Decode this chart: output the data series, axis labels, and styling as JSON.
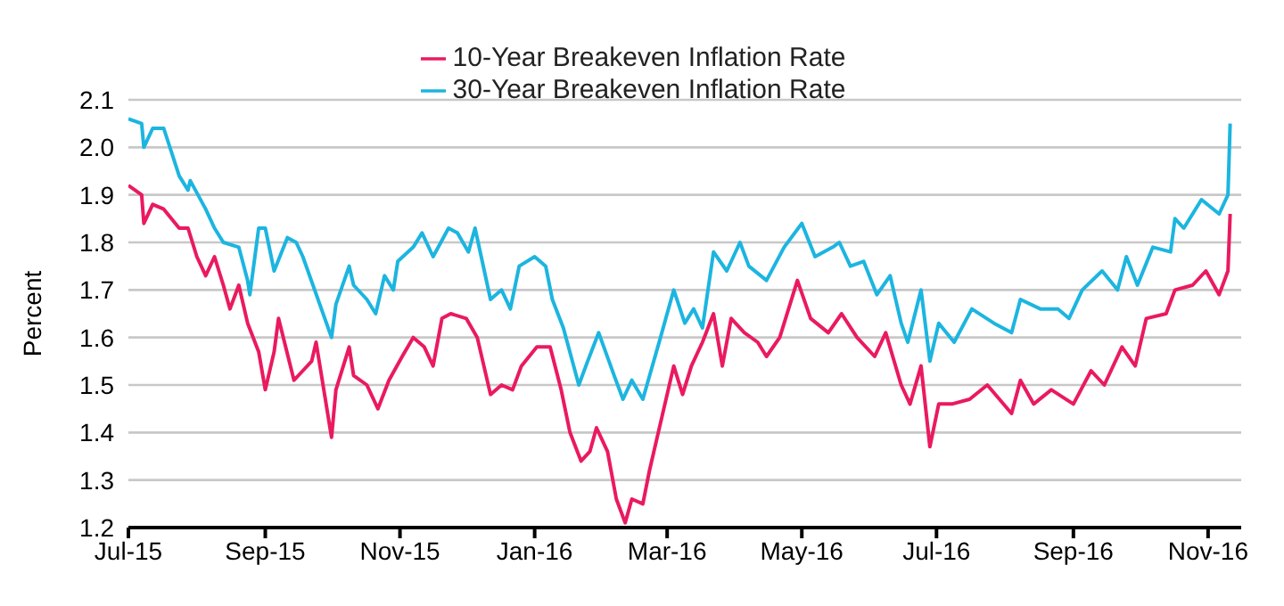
{
  "chart_data": {
    "type": "line",
    "ylabel": "Percent",
    "xlim": [
      "2015-07-01",
      "2016-11-16"
    ],
    "xticks": [
      {
        "value": "2015-07-01",
        "label": "Jul-15"
      },
      {
        "value": "2015-09-01",
        "label": "Sep-15"
      },
      {
        "value": "2015-11-01",
        "label": "Nov-15"
      },
      {
        "value": "2016-01-01",
        "label": "Jan-16"
      },
      {
        "value": "2016-03-01",
        "label": "Mar-16"
      },
      {
        "value": "2016-05-01",
        "label": "May-16"
      },
      {
        "value": "2016-07-01",
        "label": "Jul-16"
      },
      {
        "value": "2016-09-01",
        "label": "Sep-16"
      },
      {
        "value": "2016-11-01",
        "label": "Nov-16"
      }
    ],
    "ylim": [
      1.2,
      2.1
    ],
    "yticks": [
      1.2,
      1.3,
      1.4,
      1.5,
      1.6,
      1.7,
      1.8,
      1.9,
      {
        "value": 2,
        "label": "2.0"
      },
      2.1
    ],
    "grid": "y",
    "legend": "top",
    "marker": "none",
    "line_style": "solid",
    "series": [
      {
        "name": "10-Year Breakeven Inflation Rate",
        "color": "#ea1a5f",
        "x": [
          "2015-07-01",
          "2015-07-07",
          "2015-07-08",
          "2015-07-12",
          "2015-07-17",
          "2015-07-24",
          "2015-07-28",
          "2015-08-01",
          "2015-08-05",
          "2015-08-09",
          "2015-08-13",
          "2015-08-16",
          "2015-08-20",
          "2015-08-24",
          "2015-08-29",
          "2015-09-01",
          "2015-09-05",
          "2015-09-07",
          "2015-09-14",
          "2015-09-18",
          "2015-09-22",
          "2015-09-24",
          "2015-10-01",
          "2015-10-03",
          "2015-10-09",
          "2015-10-11",
          "2015-10-17",
          "2015-10-22",
          "2015-10-27",
          "2015-11-02",
          "2015-11-07",
          "2015-11-12",
          "2015-11-16",
          "2015-11-20",
          "2015-11-24",
          "2015-12-01",
          "2015-12-06",
          "2015-12-12",
          "2015-12-17",
          "2015-12-22",
          "2015-12-26",
          "2016-01-02",
          "2016-01-08",
          "2016-01-13",
          "2016-01-17",
          "2016-01-22",
          "2016-01-26",
          "2016-01-29",
          "2016-02-03",
          "2016-02-07",
          "2016-02-11",
          "2016-02-14",
          "2016-02-19",
          "2016-02-22",
          "2016-02-27",
          "2016-03-04",
          "2016-03-08",
          "2016-03-12",
          "2016-03-17",
          "2016-03-22",
          "2016-03-26",
          "2016-03-30",
          "2016-04-05",
          "2016-04-11",
          "2016-04-15",
          "2016-04-21",
          "2016-04-29",
          "2016-05-05",
          "2016-05-13",
          "2016-05-19",
          "2016-05-26",
          "2016-06-03",
          "2016-06-08",
          "2016-06-15",
          "2016-06-19",
          "2016-06-24",
          "2016-06-28",
          "2016-07-02",
          "2016-07-08",
          "2016-07-16",
          "2016-07-24",
          "2016-08-04",
          "2016-08-08",
          "2016-08-14",
          "2016-08-22",
          "2016-09-01",
          "2016-09-09",
          "2016-09-15",
          "2016-09-23",
          "2016-09-29",
          "2016-10-04",
          "2016-10-13",
          "2016-10-17",
          "2016-10-25",
          "2016-10-31",
          "2016-11-06",
          "2016-11-10",
          "2016-11-11"
        ],
        "values": [
          1.92,
          1.9,
          1.84,
          1.88,
          1.87,
          1.83,
          1.83,
          1.77,
          1.73,
          1.77,
          1.71,
          1.66,
          1.71,
          1.63,
          1.57,
          1.49,
          1.57,
          1.64,
          1.51,
          1.53,
          1.55,
          1.59,
          1.39,
          1.49,
          1.58,
          1.52,
          1.5,
          1.45,
          1.51,
          1.56,
          1.6,
          1.58,
          1.54,
          1.64,
          1.65,
          1.64,
          1.6,
          1.48,
          1.5,
          1.49,
          1.54,
          1.58,
          1.58,
          1.49,
          1.4,
          1.34,
          1.36,
          1.41,
          1.36,
          1.26,
          1.21,
          1.26,
          1.25,
          1.32,
          1.42,
          1.54,
          1.48,
          1.54,
          1.59,
          1.65,
          1.54,
          1.64,
          1.61,
          1.59,
          1.56,
          1.6,
          1.72,
          1.64,
          1.61,
          1.65,
          1.6,
          1.56,
          1.61,
          1.5,
          1.46,
          1.54,
          1.37,
          1.46,
          1.46,
          1.47,
          1.5,
          1.44,
          1.51,
          1.46,
          1.49,
          1.46,
          1.53,
          1.5,
          1.58,
          1.54,
          1.64,
          1.65,
          1.7,
          1.71,
          1.74,
          1.69,
          1.74,
          1.86
        ]
      },
      {
        "name": "30-Year Breakeven Inflation Rate",
        "color": "#1cb5e0",
        "x": [
          "2015-07-01",
          "2015-07-07",
          "2015-07-08",
          "2015-07-12",
          "2015-07-17",
          "2015-07-24",
          "2015-07-28",
          "2015-07-29",
          "2015-08-05",
          "2015-08-09",
          "2015-08-13",
          "2015-08-20",
          "2015-08-24",
          "2015-08-25",
          "2015-08-29",
          "2015-09-01",
          "2015-09-05",
          "2015-09-11",
          "2015-09-15",
          "2015-09-18",
          "2015-10-01",
          "2015-10-03",
          "2015-10-09",
          "2015-10-11",
          "2015-10-17",
          "2015-10-21",
          "2015-10-25",
          "2015-10-29",
          "2015-10-31",
          "2015-11-07",
          "2015-11-11",
          "2015-11-16",
          "2015-11-23",
          "2015-11-27",
          "2015-12-02",
          "2015-12-05",
          "2015-12-12",
          "2015-12-17",
          "2015-12-21",
          "2015-12-25",
          "2016-01-01",
          "2016-01-06",
          "2016-01-09",
          "2016-01-14",
          "2016-01-21",
          "2016-01-25",
          "2016-01-30",
          "2016-02-06",
          "2016-02-10",
          "2016-02-14",
          "2016-02-19",
          "2016-02-27",
          "2016-03-04",
          "2016-03-09",
          "2016-03-13",
          "2016-03-17",
          "2016-03-22",
          "2016-03-28",
          "2016-04-03",
          "2016-04-07",
          "2016-04-15",
          "2016-04-23",
          "2016-05-01",
          "2016-05-07",
          "2016-05-15",
          "2016-05-18",
          "2016-05-23",
          "2016-05-29",
          "2016-06-04",
          "2016-06-10",
          "2016-06-15",
          "2016-06-18",
          "2016-06-24",
          "2016-06-28",
          "2016-07-02",
          "2016-07-09",
          "2016-07-17",
          "2016-07-27",
          "2016-08-04",
          "2016-08-08",
          "2016-08-17",
          "2016-08-25",
          "2016-08-30",
          "2016-09-05",
          "2016-09-14",
          "2016-09-21",
          "2016-09-25",
          "2016-09-30",
          "2016-10-07",
          "2016-10-15",
          "2016-10-17",
          "2016-10-21",
          "2016-10-29",
          "2016-11-06",
          "2016-11-10",
          "2016-11-11"
        ],
        "values": [
          2.06,
          2.05,
          2.0,
          2.04,
          2.04,
          1.94,
          1.91,
          1.93,
          1.87,
          1.83,
          1.8,
          1.79,
          1.72,
          1.69,
          1.83,
          1.83,
          1.74,
          1.81,
          1.8,
          1.77,
          1.6,
          1.67,
          1.75,
          1.71,
          1.68,
          1.65,
          1.73,
          1.7,
          1.76,
          1.79,
          1.82,
          1.77,
          1.83,
          1.82,
          1.78,
          1.83,
          1.68,
          1.7,
          1.66,
          1.75,
          1.77,
          1.75,
          1.68,
          1.62,
          1.5,
          1.55,
          1.61,
          1.52,
          1.47,
          1.51,
          1.47,
          1.6,
          1.7,
          1.63,
          1.66,
          1.62,
          1.78,
          1.74,
          1.8,
          1.75,
          1.72,
          1.79,
          1.84,
          1.77,
          1.79,
          1.8,
          1.75,
          1.76,
          1.69,
          1.73,
          1.63,
          1.59,
          1.7,
          1.55,
          1.63,
          1.59,
          1.66,
          1.63,
          1.61,
          1.68,
          1.66,
          1.66,
          1.64,
          1.7,
          1.74,
          1.7,
          1.77,
          1.71,
          1.79,
          1.78,
          1.85,
          1.83,
          1.89,
          1.86,
          1.9,
          2.05
        ]
      }
    ]
  }
}
